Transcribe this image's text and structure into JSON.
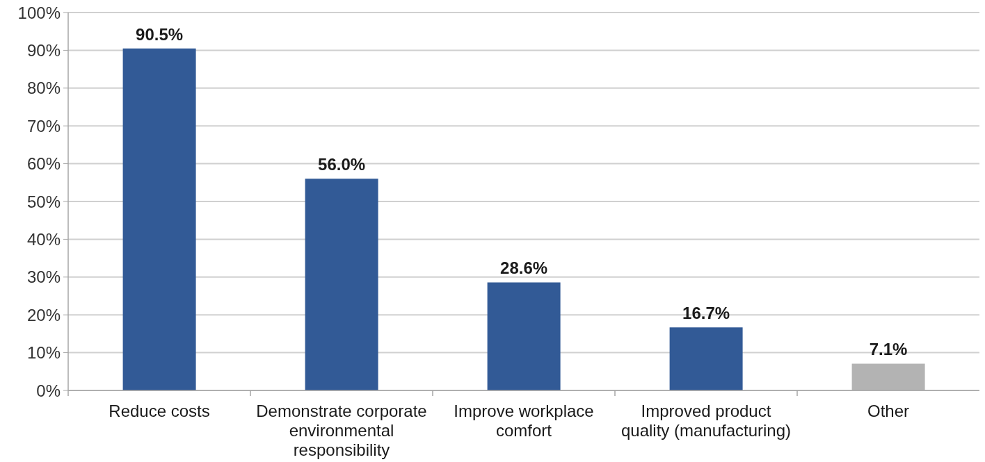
{
  "chart_data": {
    "type": "bar",
    "categories": [
      "Reduce costs",
      "Demonstrate corporate environmental responsibility",
      "Improve workplace comfort",
      "Improved product quality (manufacturing)",
      "Other"
    ],
    "values": [
      90.5,
      56.0,
      28.6,
      16.7,
      7.1
    ],
    "colors": [
      "#325a96",
      "#325a96",
      "#325a96",
      "#325a96",
      "#b3b3b3"
    ],
    "value_labels": [
      "90.5%",
      "56.0%",
      "28.6%",
      "16.7%",
      "7.1%"
    ],
    "ylim": [
      0,
      100
    ],
    "yticks": [
      {
        "value": 0,
        "label": "0%"
      },
      {
        "value": 10,
        "label": "10%"
      },
      {
        "value": 20,
        "label": "20%"
      },
      {
        "value": 30,
        "label": "30%"
      },
      {
        "value": 40,
        "label": "40%"
      },
      {
        "value": 50,
        "label": "50%"
      },
      {
        "value": 60,
        "label": "60%"
      },
      {
        "value": 70,
        "label": "70%"
      },
      {
        "value": 80,
        "label": "80%"
      },
      {
        "value": 90,
        "label": "90%"
      },
      {
        "value": 100,
        "label": "100%"
      }
    ],
    "grid": "y"
  }
}
